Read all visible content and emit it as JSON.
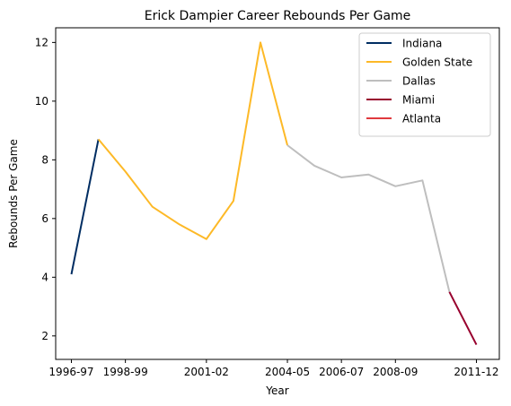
{
  "chart_data": {
    "type": "line",
    "title": "Erick Dampier Career Rebounds Per Game",
    "xlabel": "Year",
    "ylabel": "Rebounds Per Game",
    "x_ticks": [
      "1996-97",
      "1998-99",
      "2001-02",
      "2004-05",
      "2006-07",
      "2008-09",
      "2011-12"
    ],
    "y_ticks": [
      2,
      4,
      6,
      8,
      10,
      12
    ],
    "ylim": [
      1.2,
      12.5
    ],
    "grid": false,
    "legend_position": "top-right",
    "series": [
      {
        "name": "Indiana",
        "color": "#002D62",
        "x": [
          "1996-97",
          "1997-98"
        ],
        "y": [
          4.1,
          8.7
        ]
      },
      {
        "name": "Golden State",
        "color": "#FDB927",
        "x": [
          "1997-98",
          "1998-99",
          "1999-00",
          "2000-01",
          "2001-02",
          "2002-03",
          "2003-04",
          "2004-05"
        ],
        "y": [
          8.7,
          7.6,
          6.4,
          5.8,
          5.3,
          6.6,
          12.0,
          8.5
        ]
      },
      {
        "name": "Dallas",
        "color": "#BEBEBE",
        "x": [
          "2004-05",
          "2005-06",
          "2006-07",
          "2007-08",
          "2008-09",
          "2009-10",
          "2010-11"
        ],
        "y": [
          8.5,
          7.8,
          7.4,
          7.5,
          7.1,
          7.3,
          3.5
        ]
      },
      {
        "name": "Miami",
        "color": "#98002E",
        "x": [
          "2010-11",
          "2011-12"
        ],
        "y": [
          3.5,
          1.7
        ]
      },
      {
        "name": "Atlanta",
        "color": "#E03A3E",
        "x": [],
        "y": []
      }
    ]
  }
}
